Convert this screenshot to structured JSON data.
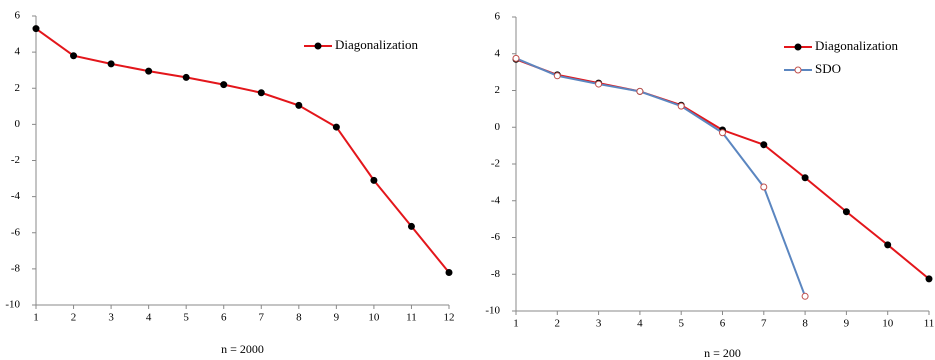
{
  "chart_data": [
    {
      "type": "line",
      "xlabel": "n = 2000",
      "x": [
        1,
        2,
        3,
        4,
        5,
        6,
        7,
        8,
        9,
        10,
        11,
        12
      ],
      "series": [
        {
          "name": "Diagonalization",
          "color": "#e3161b",
          "marker_color": "#000000",
          "marker_filled": true,
          "values": [
            5.3,
            3.8,
            3.35,
            2.95,
            2.6,
            2.2,
            1.75,
            1.05,
            -0.15,
            -3.1,
            -5.65,
            -8.2
          ]
        }
      ],
      "xlim": [
        1,
        12
      ],
      "xticks": [
        1,
        2,
        3,
        4,
        5,
        6,
        7,
        8,
        9,
        10,
        11,
        12
      ],
      "ylim": [
        -10,
        6
      ],
      "yticks": [
        -10,
        -8,
        -6,
        -4,
        -2,
        0,
        2,
        4,
        6
      ],
      "legend": "upper right"
    },
    {
      "type": "line",
      "xlabel": "n = 200",
      "x": [
        1,
        2,
        3,
        4,
        5,
        6,
        7,
        8,
        9,
        10,
        11
      ],
      "series": [
        {
          "name": "Diagonalization",
          "color": "#e3161b",
          "marker_color": "#000000",
          "marker_filled": true,
          "values": [
            3.7,
            2.85,
            2.4,
            1.95,
            1.2,
            -0.15,
            -0.95,
            -2.75,
            -4.6,
            -6.4,
            -8.25
          ]
        },
        {
          "name": "SDO",
          "color": "#5b86c0",
          "marker_color": "#c0504d",
          "marker_filled": false,
          "values": [
            3.75,
            2.8,
            2.35,
            1.95,
            1.15,
            -0.3,
            -3.25,
            -9.2,
            null,
            null,
            null
          ]
        }
      ],
      "xlim": [
        1,
        11
      ],
      "xticks": [
        1,
        2,
        3,
        4,
        5,
        6,
        7,
        8,
        9,
        10,
        11
      ],
      "ylim": [
        -10,
        6
      ],
      "yticks": [
        -10,
        -8,
        -6,
        -4,
        -2,
        0,
        2,
        4,
        6
      ],
      "legend": "upper right"
    }
  ]
}
